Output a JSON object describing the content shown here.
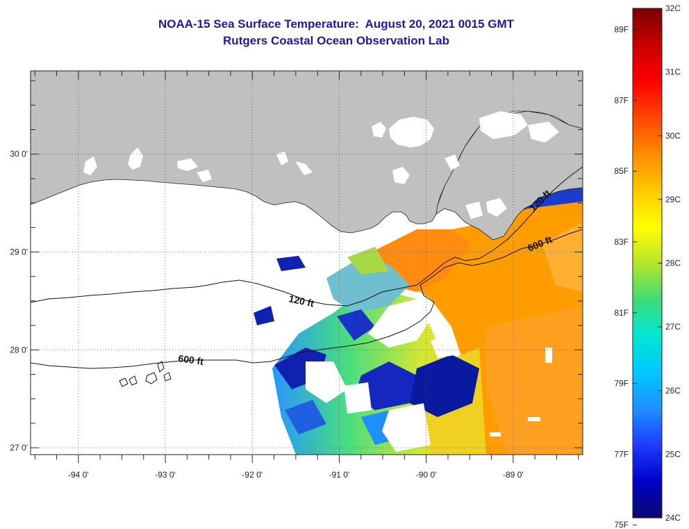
{
  "title": {
    "line1": "NOAA-15 Sea Surface Temperature:  August 20, 2021 0015 GMT",
    "line2": "Rutgers Coastal Ocean Observation Lab"
  },
  "map": {
    "lon_range": [
      -94.55,
      -88.2
    ],
    "lat_range": [
      26.93,
      30.85
    ],
    "lon_ticks": [
      {
        "value": -94,
        "label": "-94 0'"
      },
      {
        "value": -93,
        "label": "-93 0'"
      },
      {
        "value": -92,
        "label": "-92 0'"
      },
      {
        "value": -91,
        "label": "-91 0'"
      },
      {
        "value": -90,
        "label": "-90 0'"
      },
      {
        "value": -89,
        "label": "-89 0'"
      }
    ],
    "lat_ticks": [
      {
        "value": 27,
        "label": "27 0'"
      },
      {
        "value": 28,
        "label": "28 0'"
      },
      {
        "value": 29,
        "label": "29 0'"
      },
      {
        "value": 30,
        "label": "30 0'"
      }
    ],
    "land_color": "#c0c0c0",
    "no_data_color": "#ffffff",
    "contours": [
      {
        "label": "120 ft"
      },
      {
        "label": "600 ft"
      },
      {
        "label": "120 ft"
      },
      {
        "label": "600 ft"
      }
    ]
  },
  "colorbar": {
    "celsius_labels": [
      {
        "value": 32,
        "label": "32C"
      },
      {
        "value": 31,
        "label": "31C"
      },
      {
        "value": 30,
        "label": "30C"
      },
      {
        "value": 29,
        "label": "29C"
      },
      {
        "value": 28,
        "label": "28C"
      },
      {
        "value": 27,
        "label": "27C"
      },
      {
        "value": 26,
        "label": "26C"
      },
      {
        "value": 25,
        "label": "25C"
      },
      {
        "value": 24,
        "label": "24C"
      }
    ],
    "fahrenheit_labels": [
      {
        "value": 89,
        "label": "89F"
      },
      {
        "value": 87,
        "label": "87F"
      },
      {
        "value": 85,
        "label": "85F"
      },
      {
        "value": 83,
        "label": "83F"
      },
      {
        "value": 81,
        "label": "81F"
      },
      {
        "value": 79,
        "label": "79F"
      },
      {
        "value": 77,
        "label": "77F"
      },
      {
        "value": 75,
        "label": "75F"
      }
    ],
    "range_c": [
      24,
      32
    ],
    "colors": [
      "#0a0a6e",
      "#0000c8",
      "#1e3cff",
      "#1e90ff",
      "#00c8ff",
      "#00e6d2",
      "#3cdc78",
      "#b4e628",
      "#ffff00",
      "#ffc800",
      "#ff8c00",
      "#ff4600",
      "#ff0000",
      "#c80000",
      "#780000"
    ]
  }
}
